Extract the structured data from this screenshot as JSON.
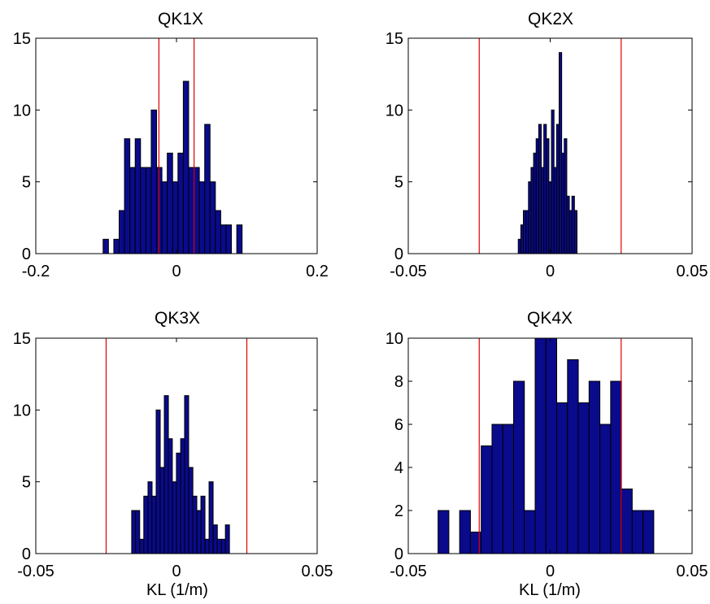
{
  "chart_data": [
    {
      "type": "bar",
      "title": "QK1X",
      "xlabel": "",
      "ylabel": "",
      "xlim": [
        -0.2,
        0.2
      ],
      "ylim": [
        0,
        15
      ],
      "xticks": [
        "-0.2",
        "0",
        "0.2"
      ],
      "xtick_values": [
        -0.2,
        0,
        0.2
      ],
      "yticks": [
        "0",
        "5",
        "10",
        "15"
      ],
      "ytick_values": [
        0,
        5,
        10,
        15
      ],
      "bin_width": 0.0076,
      "bin_centers": [
        -0.1005,
        -0.0853,
        -0.0777,
        -0.0701,
        -0.0625,
        -0.0549,
        -0.0473,
        -0.0397,
        -0.0321,
        -0.0245,
        -0.0169,
        -0.0093,
        -0.0017,
        0.0059,
        0.0135,
        0.0211,
        0.0287,
        0.0363,
        0.0439,
        0.0515,
        0.0591,
        0.0667,
        0.0743,
        0.0895
      ],
      "values": [
        1,
        1,
        3,
        8,
        6,
        8,
        6,
        6,
        10,
        6,
        5,
        7,
        5,
        7,
        12,
        6,
        6,
        5,
        9,
        5,
        3,
        2,
        2,
        2
      ],
      "bar_color": "#0a0a8c",
      "bar_edge": "#000000",
      "reference_lines": [
        -0.025,
        0.025
      ],
      "reference_color": "#dd0000",
      "grid": false
    },
    {
      "type": "bar",
      "title": "QK2X",
      "xlabel": "",
      "ylabel": "",
      "xlim": [
        -0.05,
        0.05
      ],
      "ylim": [
        0,
        15
      ],
      "xticks": [
        "-0.05",
        "0",
        "0.05"
      ],
      "xtick_values": [
        -0.05,
        0,
        0.05
      ],
      "yticks": [
        "0",
        "5",
        "10",
        "15"
      ],
      "ytick_values": [
        0,
        5,
        10,
        15
      ],
      "bin_width": 0.0009,
      "bin_centers": [
        -0.0108,
        -0.0099,
        -0.009,
        -0.0081,
        -0.0072,
        -0.0063,
        -0.0054,
        -0.0045,
        -0.0036,
        -0.0027,
        -0.0018,
        -0.0009,
        0.0,
        0.0009,
        0.0018,
        0.0027,
        0.0036,
        0.0045,
        0.0054,
        0.0063,
        0.0072,
        0.0081,
        0.009
      ],
      "values": [
        1,
        2,
        3,
        3,
        5,
        6,
        7,
        8,
        9,
        6,
        9,
        8,
        5,
        10,
        6,
        9,
        14,
        7,
        8,
        4,
        3,
        4,
        3
      ],
      "bar_color": "#0a0a8c",
      "bar_edge": "#000000",
      "reference_lines": [
        -0.025,
        0.025
      ],
      "reference_color": "#dd0000",
      "grid": false
    },
    {
      "type": "bar",
      "title": "QK3X",
      "xlabel": "KL (1/m)",
      "ylabel": "",
      "xlim": [
        -0.05,
        0.05
      ],
      "ylim": [
        0,
        15
      ],
      "xticks": [
        "-0.05",
        "0",
        "0.05"
      ],
      "xtick_values": [
        -0.05,
        0,
        0.05
      ],
      "yticks": [
        "0",
        "5",
        "10",
        "15"
      ],
      "ytick_values": [
        0,
        5,
        10,
        15
      ],
      "bin_width": 0.00145,
      "bin_centers": [
        -0.0152,
        -0.0138,
        -0.0123,
        -0.0109,
        -0.0094,
        -0.008,
        -0.0065,
        -0.0051,
        -0.0036,
        -0.0022,
        -0.0007,
        0.0007,
        0.0022,
        0.0036,
        0.0051,
        0.0065,
        0.008,
        0.0094,
        0.0109,
        0.0123,
        0.0138,
        0.0152,
        0.0167,
        0.0181
      ],
      "values": [
        3,
        3,
        1,
        4,
        5,
        4,
        10,
        6,
        11,
        8,
        5,
        7,
        8,
        11,
        6,
        4,
        3,
        4,
        1,
        5,
        2,
        1,
        1,
        2
      ],
      "bar_color": "#0a0a8c",
      "bar_edge": "#000000",
      "reference_lines": [
        -0.025,
        0.025
      ],
      "reference_color": "#dd0000",
      "grid": false
    },
    {
      "type": "bar",
      "title": "QK4X",
      "xlabel": "KL (1/m)",
      "ylabel": "",
      "xlim": [
        -0.05,
        0.05
      ],
      "ylim": [
        0,
        10
      ],
      "xticks": [
        "-0.05",
        "0",
        "0.05"
      ],
      "xtick_values": [
        -0.05,
        0,
        0.05
      ],
      "yticks": [
        "0",
        "2",
        "4",
        "6",
        "8",
        "10"
      ],
      "ytick_values": [
        0,
        2,
        4,
        6,
        8,
        10
      ],
      "bin_width": 0.0038,
      "bin_centers": [
        -0.0376,
        -0.03,
        -0.0262,
        -0.0224,
        -0.0186,
        -0.0148,
        -0.011,
        -0.0072,
        -0.0034,
        0.0004,
        0.0042,
        0.008,
        0.0118,
        0.0156,
        0.0194,
        0.0232,
        0.027,
        0.0308,
        0.0346
      ],
      "values": [
        2,
        2,
        1,
        5,
        6,
        6,
        8,
        2,
        10,
        10,
        7,
        9,
        7,
        8,
        6,
        8,
        3,
        2,
        2
      ],
      "bar_color": "#0a0a8c",
      "bar_edge": "#000000",
      "reference_lines": [
        -0.025,
        0.025
      ],
      "reference_color": "#dd0000",
      "grid": false
    }
  ]
}
